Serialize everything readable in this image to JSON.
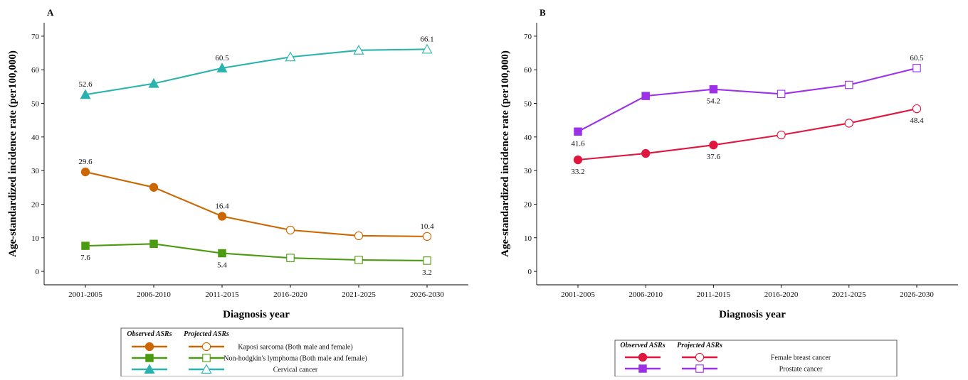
{
  "chart_data": [
    {
      "panel_label": "A",
      "type": "line",
      "x_categories": [
        "2001-2005",
        "2006-2010",
        "2011-2015",
        "2016-2020",
        "2021-2025",
        "2026-2030"
      ],
      "xlabel": "Diagnosis year",
      "ylabel": "Age-standardized incidence rate (per100,000)",
      "ylim": [
        -4,
        74
      ],
      "yticks": [
        0,
        10,
        20,
        30,
        40,
        50,
        60,
        70
      ],
      "grid": false,
      "legend": {
        "position": "bottom",
        "headers": [
          "Observed ASRs",
          "Projected ASRs"
        ]
      },
      "series": [
        {
          "name": "Kaposi sarcoma (Both male and female)",
          "color": "#CC6600",
          "marker": "circle",
          "values": [
            29.6,
            25.0,
            16.4,
            12.3,
            10.6,
            10.4
          ],
          "observed_count": 3,
          "labels": [
            {
              "index": 0,
              "text": "29.6",
              "pos": "above"
            },
            {
              "index": 2,
              "text": "16.4",
              "pos": "above"
            },
            {
              "index": 5,
              "text": "10.4",
              "pos": "above"
            }
          ]
        },
        {
          "name": "Non-hodgkin's lymphoma (Both male and female)",
          "color": "#4C9A11",
          "marker": "square",
          "values": [
            7.6,
            8.2,
            5.4,
            4.0,
            3.4,
            3.2
          ],
          "observed_count": 3,
          "labels": [
            {
              "index": 0,
              "text": "7.6",
              "pos": "below"
            },
            {
              "index": 2,
              "text": "5.4",
              "pos": "below"
            },
            {
              "index": 5,
              "text": "3.2",
              "pos": "below"
            }
          ]
        },
        {
          "name": "Cervical cancer",
          "color": "#2AB3AE",
          "marker": "triangle",
          "values": [
            52.6,
            55.9,
            60.5,
            63.8,
            65.8,
            66.1
          ],
          "observed_count": 3,
          "labels": [
            {
              "index": 0,
              "text": "52.6",
              "pos": "above"
            },
            {
              "index": 2,
              "text": "60.5",
              "pos": "above"
            },
            {
              "index": 5,
              "text": "66.1",
              "pos": "above"
            }
          ]
        }
      ]
    },
    {
      "panel_label": "B",
      "type": "line",
      "x_categories": [
        "2001-2005",
        "2006-2010",
        "2011-2015",
        "2016-2020",
        "2021-2025",
        "2026-2030"
      ],
      "xlabel": "Diagnosis year",
      "ylabel": "Age-standardized incidence rate (per100,000)",
      "ylim": [
        -4,
        74
      ],
      "yticks": [
        0,
        10,
        20,
        30,
        40,
        50,
        60,
        70
      ],
      "grid": false,
      "legend": {
        "position": "bottom",
        "headers": [
          "Observed ASRs",
          "Projected ASRs"
        ]
      },
      "series": [
        {
          "name": "Female breast cancer",
          "color": "#E0163F",
          "marker": "circle",
          "values": [
            33.2,
            35.1,
            37.6,
            40.6,
            44.1,
            48.4
          ],
          "observed_count": 3,
          "labels": [
            {
              "index": 0,
              "text": "33.2",
              "pos": "below"
            },
            {
              "index": 2,
              "text": "37.6",
              "pos": "below"
            },
            {
              "index": 5,
              "text": "48.4",
              "pos": "below"
            }
          ]
        },
        {
          "name": "Prostate cancer",
          "color": "#9B30E8",
          "marker": "square",
          "values": [
            41.6,
            52.2,
            54.2,
            52.8,
            55.5,
            60.5
          ],
          "observed_count": 3,
          "labels": [
            {
              "index": 0,
              "text": "41.6",
              "pos": "below"
            },
            {
              "index": 2,
              "text": "54.2",
              "pos": "below"
            },
            {
              "index": 5,
              "text": "60.5",
              "pos": "above"
            }
          ]
        }
      ]
    }
  ]
}
